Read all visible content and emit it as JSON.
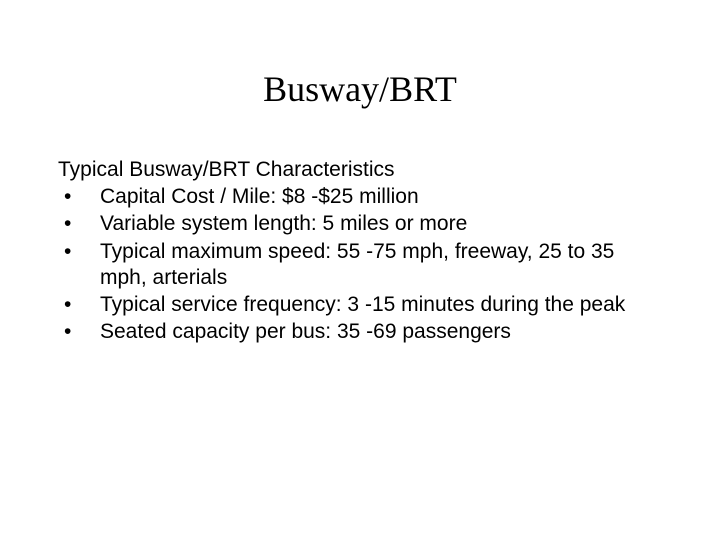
{
  "title": "Busway/BRT",
  "subtitle": "Typical Busway/BRT Characteristics",
  "bullets": [
    "Capital Cost / Mile: $8 -$25 million",
    "Variable system length: 5 miles or more",
    "Typical maximum speed: 55 -75 mph, freeway, 25 to 35 mph, arterials",
    "Typical service frequency: 3 -15 minutes during the peak",
    "Seated capacity per bus: 35 -69 passengers"
  ],
  "styling": {
    "background_color": "#ffffff",
    "text_color": "#000000",
    "title_font": "Times New Roman",
    "title_fontsize": 36,
    "body_font": "Arial",
    "body_fontsize": 21,
    "bullet_marker": "•"
  }
}
